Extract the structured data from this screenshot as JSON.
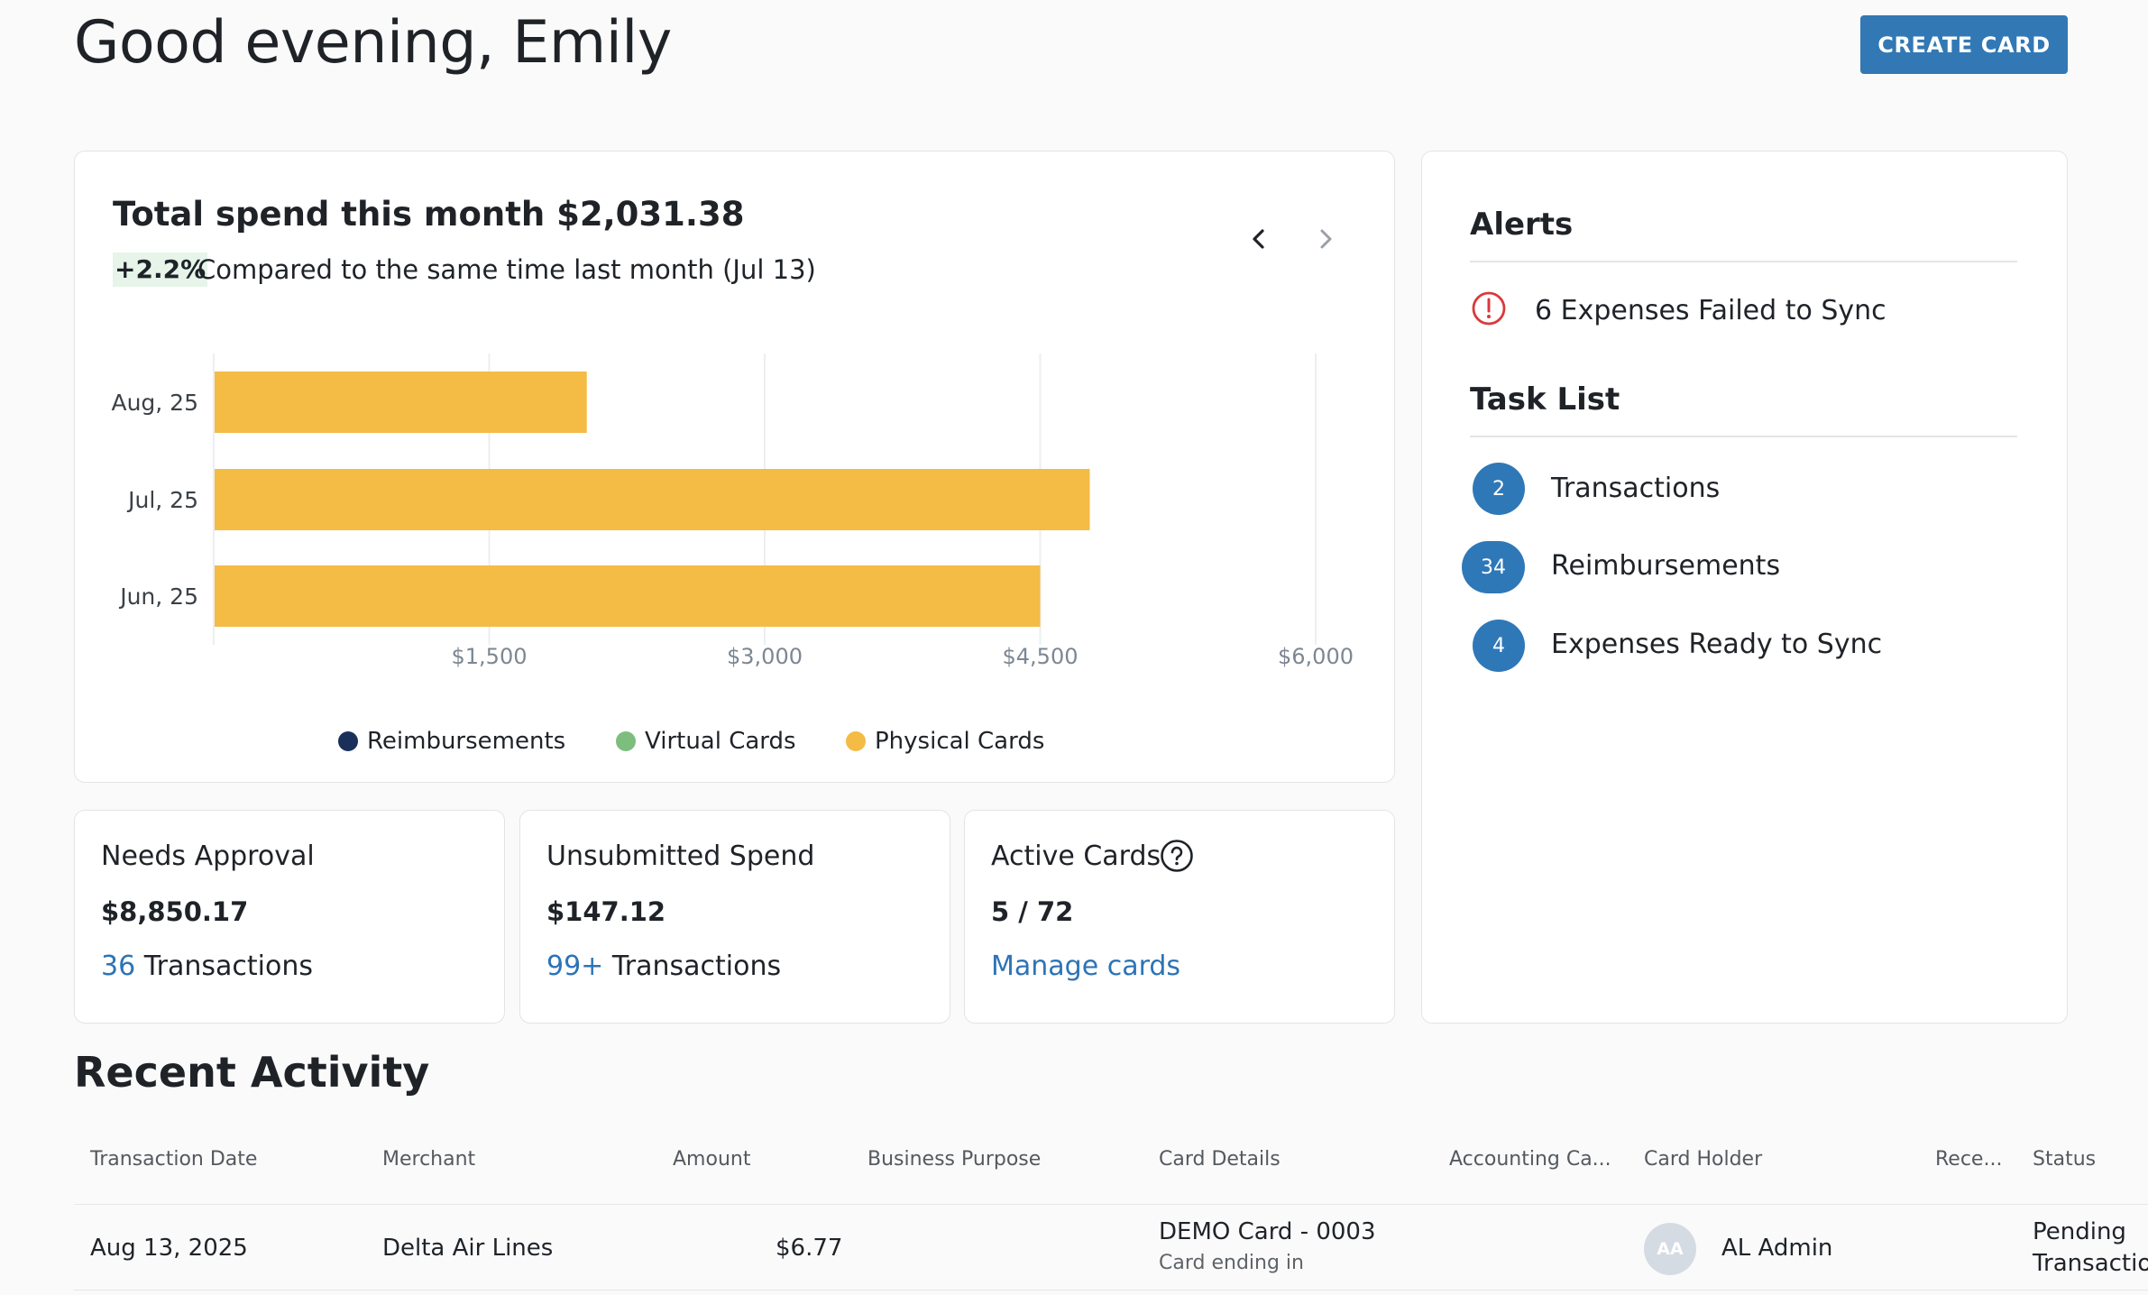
{
  "header": {
    "greeting": "Good evening, Emily",
    "create_card_label": "CREATE CARD"
  },
  "spend": {
    "title": "Total spend this month $2,031.38",
    "change_pct": "+2.2%",
    "compare_text": "Compared to the same time last month (Jul 13)"
  },
  "chart_data": {
    "type": "bar",
    "orientation": "horizontal",
    "categories": [
      "Aug, 25",
      "Jul, 25",
      "Jun, 25"
    ],
    "series": [
      {
        "name": "Reimbursements",
        "color": "#1b2f5b",
        "values": [
          0,
          0,
          0
        ]
      },
      {
        "name": "Virtual Cards",
        "color": "#7dbd7e",
        "values": [
          0,
          0,
          0
        ]
      },
      {
        "name": "Physical Cards",
        "color": "#f4bb45",
        "values": [
          2031.38,
          4770,
          4500
        ]
      }
    ],
    "xticks": [
      "$1,500",
      "$3,000",
      "$4,500",
      "$6,000"
    ],
    "xtick_values": [
      1500,
      3000,
      4500,
      6000
    ],
    "xlim": [
      0,
      6000
    ],
    "grid": true,
    "legend_position": "bottom"
  },
  "stats": {
    "needs_approval": {
      "label": "Needs Approval",
      "value": "$8,850.17",
      "count": "36",
      "count_suffix": "Transactions"
    },
    "unsubmitted": {
      "label": "Unsubmitted Spend",
      "value": "$147.12",
      "count": "99+",
      "count_suffix": "Transactions"
    },
    "active_cards": {
      "label": "Active Cards",
      "value": "5 / 72",
      "link": "Manage cards"
    }
  },
  "alerts": {
    "title": "Alerts",
    "items": [
      {
        "text": "6 Expenses Failed to Sync",
        "icon": "alert-circle-icon",
        "color": "#d9393b"
      }
    ]
  },
  "tasks": {
    "title": "Task List",
    "items": [
      {
        "count": "2",
        "label": "Transactions"
      },
      {
        "count": "34",
        "label": "Reimbursements"
      },
      {
        "count": "4",
        "label": "Expenses Ready to Sync"
      }
    ]
  },
  "recent": {
    "title": "Recent Activity",
    "columns": [
      "Transaction Date",
      "Merchant",
      "Amount",
      "Business Purpose",
      "Card Details",
      "Accounting Ca...",
      "Card Holder",
      "Rece...",
      "Status"
    ],
    "rows": [
      {
        "date": "Aug 13, 2025",
        "merchant": "Delta Air Lines",
        "amount": "$6.77",
        "business_purpose": "",
        "card_name": "DEMO Card - 0003",
        "card_sub": "Card ending in",
        "accounting": "",
        "holder_initials": "AA",
        "holder_name": "AL Admin",
        "receipt": "",
        "status_line1": "Pending",
        "status_line2": "Transaction"
      }
    ]
  },
  "colors": {
    "accent": "#3278b4",
    "link": "#2d74b6",
    "bar": "#f4bb45",
    "alert": "#d9393b",
    "badge": "#2f78b8"
  }
}
